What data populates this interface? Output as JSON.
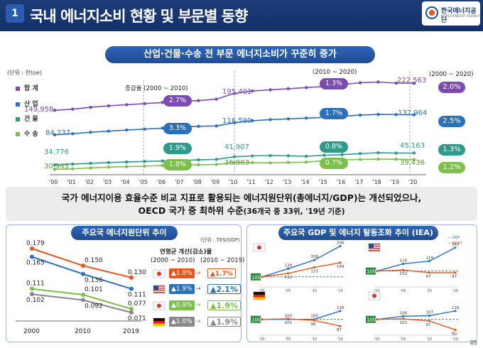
{
  "header": {
    "number": "1",
    "title": "국내 에너지소비 현황 및 부문별 동향",
    "logo_ko": "한국에너지공단",
    "logo_en": "KOREA ENERGY AGENCY"
  },
  "main_chart": {
    "pill": "산업·건물·수송 전 부문 에너지소비가 꾸준히 증가",
    "unit": "(단위 : 천toe)",
    "legend": [
      "합 계",
      "산 업",
      "건 물",
      "수 송"
    ],
    "note_2000_2010": "증감율 (2000 ~ 2010)",
    "note_2010_2020": "(2010 ~ 2020)",
    "note_2000_2020": "(2000 ~ 2020)",
    "years": [
      "'00",
      "'01",
      "'02",
      "'03",
      "'04",
      "'05",
      "'06",
      "'07",
      "'08",
      "'09",
      "'10",
      "'11",
      "'12",
      "'13",
      "'14",
      "'15",
      "'16",
      "'17",
      "'18",
      "'19",
      "'20"
    ],
    "colors": {
      "total": "#7b4bb0",
      "industry": "#2c6fbb",
      "buildings": "#2e9b8a",
      "transport": "#7cc04b"
    },
    "series": [
      {
        "name": "합 계",
        "values": [
          149958,
          153000,
          158000,
          162000,
          165000,
          168000,
          171000,
          174000,
          176000,
          180000,
          195401,
          202000,
          205000,
          208000,
          211000,
          214000,
          219000,
          224000,
          226000,
          223000,
          222563
        ],
        "v2000": "149,958",
        "v2010": "195,401",
        "v2020": "222,563",
        "r1": "2.7%",
        "r2": "1.3%",
        "r3": "2.0%"
      },
      {
        "name": "산 업",
        "values": [
          84237,
          87000,
          91000,
          94000,
          97000,
          99500,
          102000,
          105000,
          107000,
          108000,
          116590,
          122000,
          125000,
          127000,
          129000,
          131000,
          134000,
          137000,
          139000,
          138500,
          137964
        ],
        "v2000": "84,237",
        "v2010": "116,590",
        "v2020": "137,964",
        "r1": "3.3%",
        "r2": "1.7%",
        "r3": "2.5%"
      },
      {
        "name": "건 물",
        "values": [
          34776,
          35500,
          36200,
          36800,
          37300,
          37800,
          38200,
          38700,
          39200,
          39600,
          41907,
          42600,
          42900,
          42700,
          42300,
          43200,
          43700,
          44600,
          45300,
          45000,
          45163
        ],
        "v2000": "34,776",
        "v2010": "41,907",
        "v2020": "45,163",
        "r1": "1.9%",
        "r2": "0.8%",
        "r3": "1.3%"
      },
      {
        "name": "수 송",
        "values": [
          30945,
          31500,
          32200,
          32900,
          33300,
          33700,
          34300,
          34800,
          34900,
          35200,
          36903,
          36700,
          36600,
          36900,
          37200,
          38500,
          39100,
          39600,
          39800,
          39700,
          39436
        ],
        "v2000": "30,945",
        "v2010": "36,903",
        "v2020": "39,436",
        "r1": "1.8%",
        "r2": "0.7%",
        "r3": "1.2%"
      }
    ]
  },
  "message": {
    "line1": "국가 에너지이용 효율수준 비교 지표로 활용되는 에너지원단위(총에너지/GDP)는 개선되었으나,",
    "line2_main": "OECD 국가 중 최하위 수준",
    "line2_small": "(36개국 중 33위, '19년 기준)"
  },
  "left_panel": {
    "pill": "주요국 에너지원단위 추이",
    "unit": "(단위 : TES/GDP)",
    "years": [
      "2000",
      "2010",
      "2019"
    ],
    "improve_title": "연평균 개선(감소)율",
    "period1": "(2000 ~ 2010)",
    "period2": "(2010 ~ 2019)",
    "colors": [
      "#e8561e",
      "#2c6fbb",
      "#7cc04b",
      "#888888"
    ],
    "series": [
      {
        "values": [
          0.179,
          0.15,
          0.13
        ],
        "labels": [
          "0.179",
          "0.150",
          "0.130"
        ],
        "rate1": "▲1.8%",
        "rate2": "▲1.7%"
      },
      {
        "values": [
          0.165,
          0.136,
          0.111
        ],
        "labels": [
          "0.165",
          "0.136",
          "0.111"
        ],
        "rate1": "▲1.9%",
        "rate2": "▲2.1%"
      },
      {
        "values": [
          0.111,
          0.101,
          0.077
        ],
        "labels": [
          "0.111",
          "0.101",
          "0.077"
        ],
        "rate1": "▲0.9%",
        "rate2": "▲1.9%"
      },
      {
        "values": [
          0.102,
          0.092,
          0.071
        ],
        "labels": [
          "0.102",
          "0.092",
          "0.071"
        ],
        "rate1": "▲1.0%",
        "rate2": "▲1.9%"
      }
    ]
  },
  "right_panel": {
    "pill": "주요국 GDP 및 에너지 탈동조화 추이 (IEA)",
    "legend": [
      "GDP",
      "에너지"
    ],
    "xticks": [
      "'00",
      "'05",
      "'10",
      "'19"
    ],
    "countries": [
      {
        "flag": "korea",
        "gdp": [
          100,
          128,
          158,
          206
        ],
        "energy": [
          100,
          112,
          133,
          149
        ],
        "gdp_labels": [
          "128",
          "158",
          "206"
        ],
        "energy_labels": [
          "112",
          "133",
          "149"
        ]
      },
      {
        "flag": "usa",
        "gdp": [
          100,
          114,
          119,
          145
        ],
        "energy": [
          100,
          102,
          97,
          97
        ],
        "gdp_labels": [
          "114",
          "119",
          "145"
        ],
        "energy_labels": [
          "102",
          "97",
          "97"
        ]
      },
      {
        "flag": "germany",
        "gdp": [
          100,
          100,
          100,
          116
        ],
        "energy": [
          100,
          101,
          98,
          87
        ],
        "gdp_labels": [
          "100",
          "100",
          "116"
        ],
        "energy_labels": [
          "101",
          "98",
          "87"
        ]
      },
      {
        "flag": "japan",
        "gdp": [
          100,
          106,
          107,
          116
        ],
        "energy": [
          100,
          101,
          97,
          80
        ],
        "gdp_labels": [
          "106",
          "107",
          "116"
        ],
        "energy_labels": [
          "101",
          "97",
          "80"
        ]
      }
    ],
    "base": "100"
  },
  "page": "05"
}
